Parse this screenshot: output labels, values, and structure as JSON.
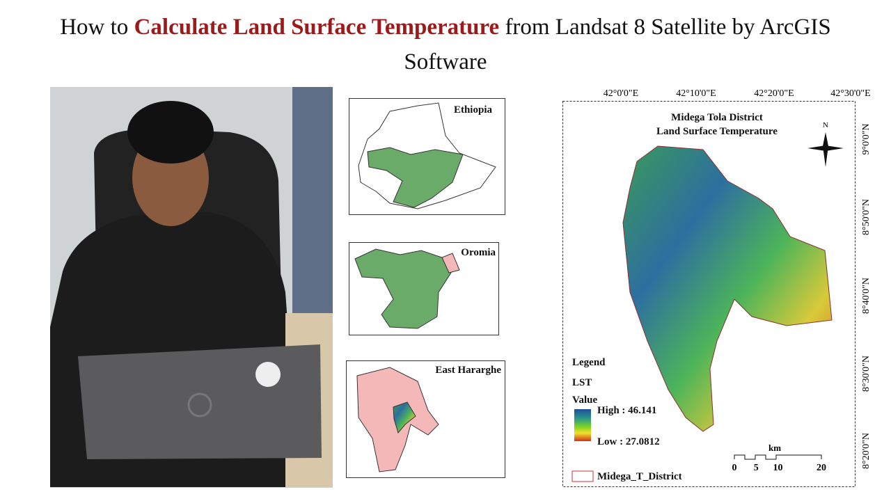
{
  "header": {
    "title_pre": "How to ",
    "title_highlight": "Calculate Land Surface Temperature",
    "title_post": " from Landsat 8 Satellite by ArcGIS Software"
  },
  "insets": [
    {
      "label": "Ethiopia"
    },
    {
      "label": "Oromia"
    },
    {
      "label": "East Hararghe"
    }
  ],
  "map": {
    "title": [
      "Midega Tola District",
      "Land Surface Temperature"
    ],
    "north": "N",
    "longitudes": [
      "42°0'0\"E",
      "42°10'0\"E",
      "42°20'0\"E",
      "42°30'0\"E"
    ],
    "latitudes": [
      "9°0'0\"N",
      "8°50'0\"N",
      "8°40'0\"N",
      "8°30'0\"N",
      "8°20'0\"N"
    ],
    "legend": {
      "title": "Legend",
      "layer": "LST",
      "field": "Value",
      "high": "High : 46.141",
      "low": "Low : 27.0812",
      "district": "Midega_T_District"
    },
    "scale": {
      "unit": "km",
      "ticks": [
        0,
        5,
        10,
        20
      ]
    }
  }
}
